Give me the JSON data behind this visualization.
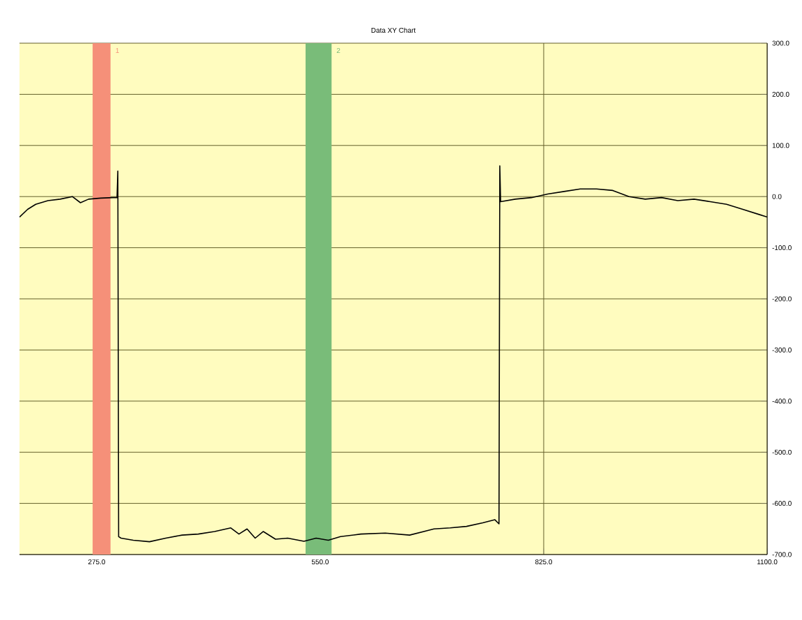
{
  "chart_data": {
    "type": "line",
    "title": "Data XY Chart",
    "x": [
      180,
      190,
      200,
      215,
      230,
      245,
      255,
      265,
      280,
      295,
      300,
      301,
      302,
      305,
      320,
      340,
      360,
      380,
      400,
      420,
      440,
      450,
      460,
      470,
      480,
      495,
      510,
      530,
      545,
      560,
      575,
      600,
      630,
      660,
      690,
      710,
      730,
      750,
      765,
      770,
      771,
      772,
      790,
      810,
      830,
      850,
      870,
      890,
      910,
      930,
      950,
      970,
      990,
      1010,
      1030,
      1050,
      1070,
      1090,
      1100
    ],
    "series": [
      {
        "color": "#000000",
        "values": [
          -40,
          -25,
          -15,
          -8,
          -5,
          0,
          -12,
          -5,
          -3,
          -2,
          -2,
          50,
          -665,
          -668,
          -672,
          -675,
          -668,
          -662,
          -660,
          -655,
          -648,
          -660,
          -650,
          -668,
          -655,
          -670,
          -668,
          -674,
          -668,
          -672,
          -665,
          -660,
          -658,
          -662,
          -650,
          -648,
          -645,
          -638,
          -632,
          -640,
          60,
          -10,
          -5,
          -2,
          5,
          10,
          15,
          15,
          12,
          0,
          -5,
          -2,
          -8,
          -5,
          -10,
          -15,
          -25,
          -35,
          -40
        ]
      }
    ],
    "xlim": [
      180,
      1100
    ],
    "xticks": [
      {
        "value": 275,
        "label": "275.0"
      },
      {
        "value": 550,
        "label": "550.0"
      },
      {
        "value": 825,
        "label": "825.0"
      },
      {
        "value": 1100,
        "label": "1100.0"
      }
    ],
    "ylim": [
      -700,
      300
    ],
    "yticks": [
      {
        "value": -700,
        "label": "-700.0"
      },
      {
        "value": -600,
        "label": "-600.0"
      },
      {
        "value": -500,
        "label": "-500.0"
      },
      {
        "value": -400,
        "label": "-400.0"
      },
      {
        "value": -300,
        "label": "-300.0"
      },
      {
        "value": -200,
        "label": "-200.0"
      },
      {
        "value": -100,
        "label": "-100.0"
      },
      {
        "value": 0,
        "label": "0.0"
      },
      {
        "value": 100,
        "label": "100.0"
      },
      {
        "value": 200,
        "label": "200.0"
      },
      {
        "value": 300,
        "label": "300.0"
      }
    ],
    "bands": [
      {
        "axis": "x",
        "from": 270,
        "to": 292,
        "label": "1",
        "color": "#f59079"
      },
      {
        "axis": "x",
        "from": 532,
        "to": 564,
        "label": "2",
        "color": "#79bc79"
      }
    ],
    "grid": true,
    "marker": "none",
    "line_style": "solid"
  }
}
